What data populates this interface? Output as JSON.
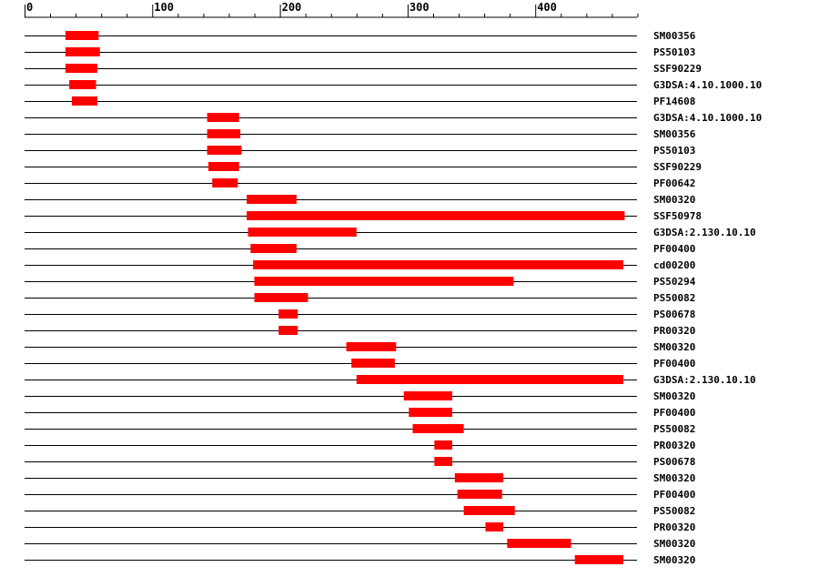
{
  "chart_data": {
    "type": "bar",
    "orientation": "horizontal-ranges",
    "x_range": [
      0,
      480
    ],
    "axis_ticks": [
      {
        "value": 0,
        "label": "0"
      },
      {
        "value": 100,
        "label": "100"
      },
      {
        "value": 200,
        "label": "200"
      },
      {
        "value": 300,
        "label": "300"
      },
      {
        "value": 400,
        "label": "400"
      }
    ],
    "minor_tick_step": 20,
    "bar_color": "#ff0000",
    "line_color": "#000000",
    "rows": [
      {
        "label": "SM00356",
        "start": 32,
        "end": 58
      },
      {
        "label": "PS50103",
        "start": 32,
        "end": 59
      },
      {
        "label": "SSF90229",
        "start": 32,
        "end": 57
      },
      {
        "label": "G3DSA:4.10.1000.10",
        "start": 35,
        "end": 56
      },
      {
        "label": "PF14608",
        "start": 37,
        "end": 57
      },
      {
        "label": "G3DSA:4.10.1000.10",
        "start": 143,
        "end": 168
      },
      {
        "label": "SM00356",
        "start": 143,
        "end": 169
      },
      {
        "label": "PS50103",
        "start": 143,
        "end": 170
      },
      {
        "label": "SSF90229",
        "start": 144,
        "end": 168
      },
      {
        "label": "PF00642",
        "start": 147,
        "end": 167
      },
      {
        "label": "SM00320",
        "start": 174,
        "end": 213
      },
      {
        "label": "SSF50978",
        "start": 174,
        "end": 470
      },
      {
        "label": "G3DSA:2.130.10.10",
        "start": 175,
        "end": 260
      },
      {
        "label": "PF00400",
        "start": 177,
        "end": 213
      },
      {
        "label": "cd00200",
        "start": 179,
        "end": 469
      },
      {
        "label": "PS50294",
        "start": 180,
        "end": 383
      },
      {
        "label": "PS50082",
        "start": 180,
        "end": 222
      },
      {
        "label": "PS00678",
        "start": 199,
        "end": 214
      },
      {
        "label": "PR00320",
        "start": 199,
        "end": 214
      },
      {
        "label": "SM00320",
        "start": 252,
        "end": 291
      },
      {
        "label": "PF00400",
        "start": 256,
        "end": 290
      },
      {
        "label": "G3DSA:2.130.10.10",
        "start": 260,
        "end": 469
      },
      {
        "label": "SM00320",
        "start": 297,
        "end": 335
      },
      {
        "label": "PF00400",
        "start": 301,
        "end": 335
      },
      {
        "label": "PS50082",
        "start": 304,
        "end": 344
      },
      {
        "label": "PR00320",
        "start": 321,
        "end": 335
      },
      {
        "label": "PS00678",
        "start": 321,
        "end": 335
      },
      {
        "label": "SM00320",
        "start": 337,
        "end": 375
      },
      {
        "label": "PF00400",
        "start": 339,
        "end": 374
      },
      {
        "label": "PS50082",
        "start": 344,
        "end": 384
      },
      {
        "label": "PR00320",
        "start": 361,
        "end": 375
      },
      {
        "label": "SM00320",
        "start": 378,
        "end": 428
      },
      {
        "label": "SM00320",
        "start": 431,
        "end": 469
      }
    ]
  }
}
